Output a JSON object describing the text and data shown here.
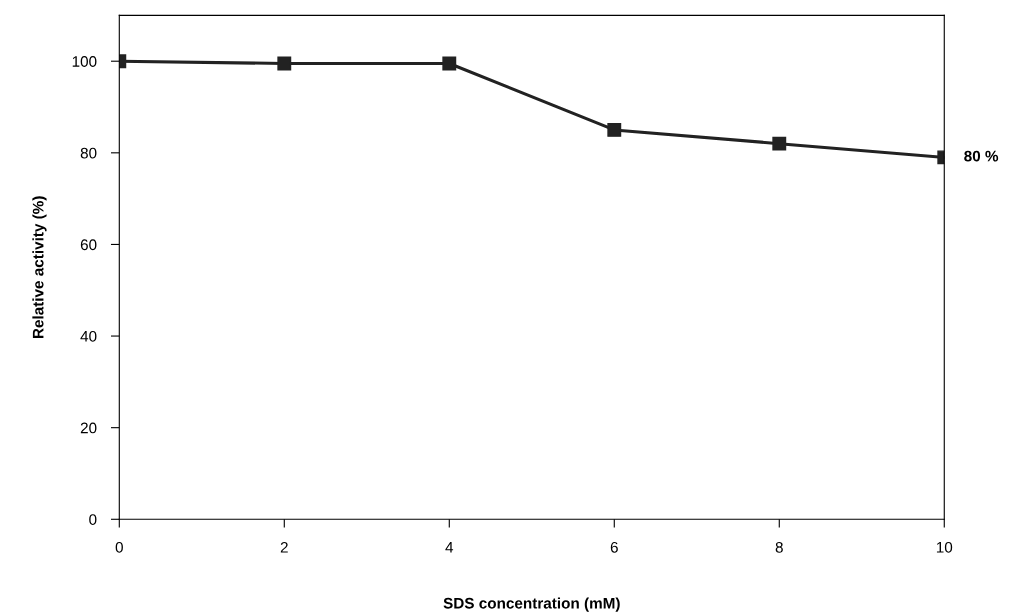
{
  "chart_data": {
    "type": "line",
    "xlabel": "SDS concentration (mM)",
    "ylabel": "Relative activity (%)",
    "x": [
      0,
      2,
      4,
      6,
      8,
      10
    ],
    "series": [
      {
        "color": "#222222",
        "values": [
          100,
          99.5,
          99.5,
          85,
          82,
          79
        ]
      }
    ],
    "marker": "square",
    "line_style": "solid",
    "grid": false,
    "legend": false,
    "xlim": [
      0,
      10
    ],
    "xticks": [
      0,
      2,
      4,
      6,
      8,
      10
    ],
    "ylim": [
      0,
      110
    ],
    "yticks": [
      0,
      20,
      40,
      60,
      80,
      100
    ],
    "annotations": [
      {
        "text": "80 %",
        "x": 10,
        "y": 79
      }
    ]
  }
}
